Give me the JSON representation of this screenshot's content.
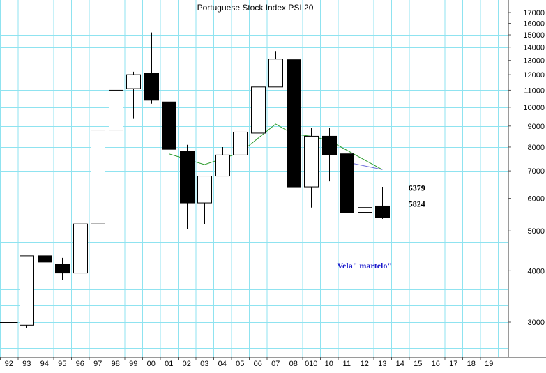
{
  "chart_data": {
    "type": "candlestick",
    "title": "Portuguese Stock Index PSI 20",
    "scale": "log",
    "ylim": [
      2400,
      18000
    ],
    "y_ticks": [
      3000,
      4000,
      5000,
      6000,
      7000,
      8000,
      9000,
      10000,
      11000,
      12000,
      13000,
      14000,
      15000,
      16000,
      17000
    ],
    "y_tick_labels": [
      "3000",
      "4000",
      "5000",
      "6000",
      "7000",
      "8000",
      "9000",
      "10000",
      "11000",
      "12000",
      "13000",
      "14000",
      "15000",
      "16000",
      "17000"
    ],
    "x_labels": [
      "92",
      "93",
      "94",
      "95",
      "96",
      "97",
      "98",
      "99",
      "00",
      "01",
      "02",
      "03",
      "04",
      "05",
      "06",
      "07",
      "08",
      "010",
      "10",
      "11",
      "12",
      "13",
      "14",
      "15",
      "16",
      "17",
      "18",
      "19"
    ],
    "grid": true,
    "candles": [
      {
        "period": "92",
        "open": 3000,
        "close": 3000,
        "high": 3000,
        "low": 3000
      },
      {
        "period": "93",
        "open": 2950,
        "close": 4350,
        "high": 4350,
        "low": 2900
      },
      {
        "period": "94",
        "open": 4350,
        "close": 4200,
        "high": 5250,
        "low": 3700
      },
      {
        "period": "95",
        "open": 4150,
        "close": 3950,
        "high": 4300,
        "low": 3800
      },
      {
        "period": "96",
        "open": 3950,
        "close": 5200,
        "high": 5200,
        "low": 3950
      },
      {
        "period": "97",
        "open": 5200,
        "close": 8800,
        "high": 8800,
        "low": 5200
      },
      {
        "period": "98",
        "open": 8800,
        "close": 11000,
        "high": 15600,
        "low": 7600
      },
      {
        "period": "99",
        "open": 11100,
        "close": 12000,
        "high": 12200,
        "low": 9400
      },
      {
        "period": "00",
        "open": 12100,
        "close": 10400,
        "high": 15200,
        "low": 10200
      },
      {
        "period": "01",
        "open": 10300,
        "close": 7900,
        "high": 11300,
        "low": 6200
      },
      {
        "period": "02",
        "open": 7800,
        "close": 5850,
        "high": 8100,
        "low": 5050
      },
      {
        "period": "03",
        "open": 5850,
        "close": 6800,
        "high": 6800,
        "low": 5200
      },
      {
        "period": "04",
        "open": 6800,
        "close": 7650,
        "high": 8000,
        "low": 6800
      },
      {
        "period": "05",
        "open": 7650,
        "close": 8700,
        "high": 8700,
        "low": 7650
      },
      {
        "period": "06",
        "open": 8650,
        "close": 11200,
        "high": 11200,
        "low": 8650
      },
      {
        "period": "07",
        "open": 11200,
        "close": 13100,
        "high": 13700,
        "low": 11200
      },
      {
        "period": "08",
        "open": 13050,
        "close": 6400,
        "high": 13250,
        "low": 5700
      },
      {
        "period": "010",
        "open": 6400,
        "close": 8500,
        "high": 8900,
        "low": 5700
      },
      {
        "period": "10",
        "open": 8500,
        "close": 7650,
        "high": 8900,
        "low": 6600
      },
      {
        "period": "11",
        "open": 7700,
        "close": 5550,
        "high": 8200,
        "low": 5150
      },
      {
        "period": "12",
        "open": 5550,
        "close": 5700,
        "high": 5800,
        "low": 4450
      },
      {
        "period": "13",
        "open": 5750,
        "close": 5400,
        "high": 6400,
        "low": 5350
      }
    ],
    "moving_average_green": [
      {
        "period": "01",
        "value": 7700
      },
      {
        "period": "03",
        "value": 7250
      },
      {
        "period": "05",
        "value": 7750
      },
      {
        "period": "07",
        "value": 9100
      },
      {
        "period": "08",
        "value": 8600
      },
      {
        "period": "010",
        "value": 8500
      },
      {
        "period": "10",
        "value": 8300
      },
      {
        "period": "13",
        "value": 7050
      }
    ],
    "moving_average_blue": [
      {
        "period": "11",
        "value": 7350
      },
      {
        "period": "13",
        "value": 7050
      }
    ],
    "levels": [
      {
        "value": 6379,
        "label": "6379",
        "from_period": "08",
        "to_period": "14"
      },
      {
        "value": 5824,
        "label": "5824",
        "from_period": "02",
        "to_period": "14"
      }
    ],
    "hammer_marker": {
      "value": 4450,
      "from_period": "11",
      "to_period": "14"
    },
    "annotations": [
      {
        "text": "Vela\" martelo\"",
        "period": "12",
        "value": 4050
      }
    ],
    "colors": {
      "grid": "#8fe3f0",
      "candle": "#000000",
      "moving_average_green": "#2a9a2a",
      "moving_average_blue": "#6b6bd8",
      "annotation": "#1a1acc",
      "hammer_marker": "#2233aa"
    }
  }
}
